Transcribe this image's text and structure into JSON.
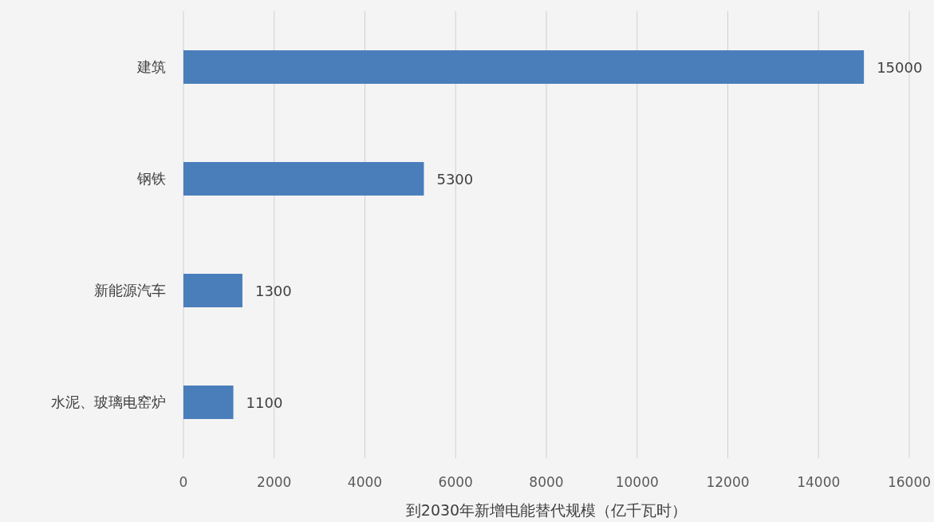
{
  "chart_data": {
    "type": "bar",
    "orientation": "horizontal",
    "xlabel": "到2030年新增电能替代规模（亿千瓦时）",
    "categories": [
      "建筑",
      "钢铁",
      "新能源汽车",
      "水泥、玻璃电窑炉"
    ],
    "values": [
      15000,
      5300,
      1300,
      1100
    ],
    "color": "#4a7ebb",
    "xlim": [
      0,
      16000
    ],
    "xticks": [
      0,
      2000,
      4000,
      6000,
      8000,
      10000,
      12000,
      14000,
      16000
    ],
    "grid": "x",
    "data_labels": true
  }
}
